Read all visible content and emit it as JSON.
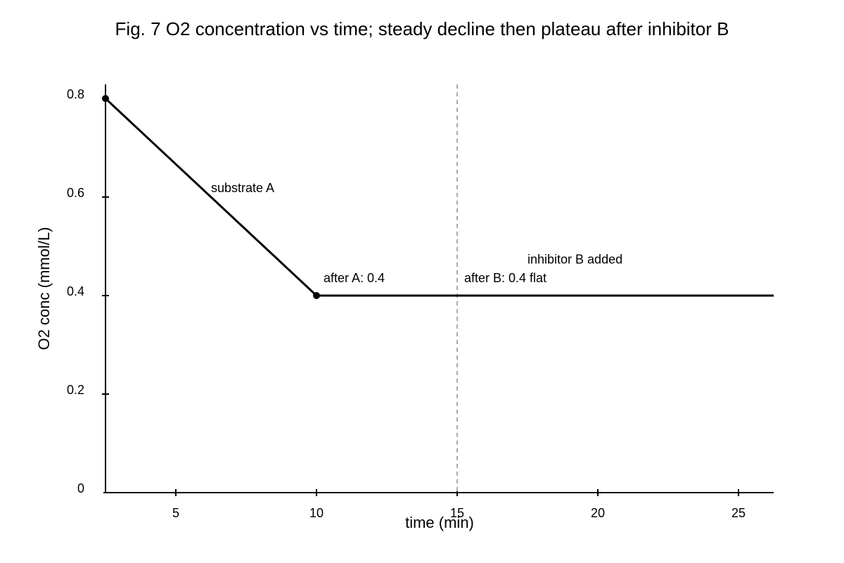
{
  "chart_data": {
    "type": "line",
    "title": "Fig. 7 O2 concentration vs time; steady decline then plateau after inhibitor B",
    "xlabel": "time (min)",
    "ylabel": "O2 conc (mmol/L)",
    "xlim": [
      2.5,
      26.25
    ],
    "ylim": [
      0,
      0.8
    ],
    "x_ticks": [
      5,
      10,
      15,
      20,
      25
    ],
    "y_ticks": [
      0,
      0.2,
      0.4,
      0.6,
      0.8
    ],
    "grid": false,
    "series": [
      {
        "x": [
          2.5,
          10,
          26.25
        ],
        "y": [
          0.8,
          0.4,
          0.4
        ],
        "markers": [
          [
            2.5,
            0.8
          ],
          [
            10,
            0.4
          ]
        ],
        "color": "#000000"
      }
    ],
    "vlines": [
      {
        "x": 15,
        "color": "#aaaaaa",
        "style": "dashed"
      }
    ],
    "annotations": [
      {
        "text": "substrate A",
        "x": 6.25,
        "y": 0.61
      },
      {
        "text": "after A: 0.4",
        "x": 10.25,
        "y": 0.427
      },
      {
        "text": "inhibitor B added",
        "x": 17.5,
        "y": 0.465
      },
      {
        "text": "after B: 0.4 flat",
        "x": 15.25,
        "y": 0.427
      }
    ]
  }
}
